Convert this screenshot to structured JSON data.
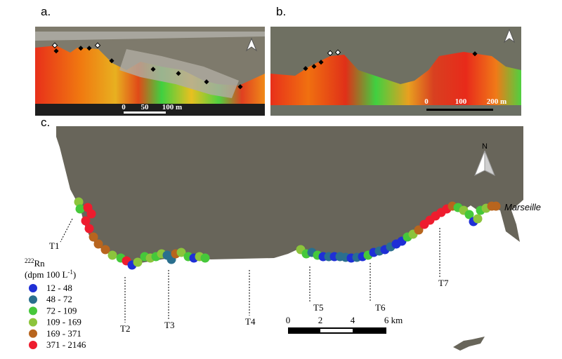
{
  "panels": [
    {
      "label": "a.",
      "scale": [
        "0",
        "50",
        "100 m"
      ]
    },
    {
      "label": "b.",
      "scale": [
        "0",
        "100",
        "200 m"
      ]
    },
    {
      "label": "c."
    }
  ],
  "map": {
    "north": "N",
    "city": "Marseille",
    "transects": [
      "T1",
      "T2",
      "T3",
      "T4",
      "T5",
      "T6",
      "T7"
    ],
    "scale": [
      "0",
      "2",
      "4",
      "6 km"
    ]
  },
  "legend": {
    "isotope_mass": "222",
    "element": "Rn",
    "unit": "(dpm 100 L",
    "unit_exponent": "-1",
    "unit_close": ")",
    "items": [
      {
        "label": "12 - 48",
        "color": "#1f2fd6"
      },
      {
        "label": "48 - 72",
        "color": "#2a6f8e"
      },
      {
        "label": "72 - 109",
        "color": "#46c83a"
      },
      {
        "label": "109 - 169",
        "color": "#8cc43c"
      },
      {
        "label": "169 - 371",
        "color": "#b8651e"
      },
      {
        "label": "371 - 2146",
        "color": "#ee1c2e"
      }
    ]
  }
}
